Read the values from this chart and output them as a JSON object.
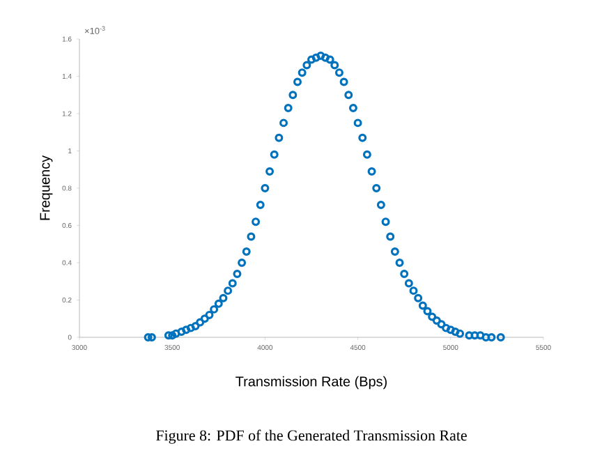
{
  "chart_data": {
    "type": "scatter",
    "xlabel": "Transmission Rate (Bps)",
    "ylabel": "Frequency",
    "annotations": [
      "×10$^{-3}$",
      "Figure 8: PDF of the Generated Transmission Rate"
    ],
    "x": [
      3370,
      3390,
      3480,
      3500,
      3520,
      3550,
      3575,
      3600,
      3625,
      3650,
      3675,
      3700,
      3725,
      3750,
      3775,
      3800,
      3825,
      3850,
      3875,
      3900,
      3925,
      3950,
      3975,
      4000,
      4025,
      4050,
      4075,
      4100,
      4125,
      4150,
      4175,
      4200,
      4225,
      4250,
      4275,
      4300,
      4325,
      4350,
      4375,
      4400,
      4425,
      4450,
      4475,
      4500,
      4525,
      4550,
      4575,
      4600,
      4625,
      4650,
      4675,
      4700,
      4725,
      4750,
      4775,
      4800,
      4825,
      4850,
      4875,
      4900,
      4925,
      4950,
      4975,
      5000,
      5025,
      5050,
      5100,
      5130,
      5160,
      5190,
      5220,
      5270
    ],
    "series": [
      {
        "color": "#0072bd",
        "values": [
          0,
          0,
          0.01,
          0.01,
          0.02,
          0.03,
          0.04,
          0.05,
          0.06,
          0.08,
          0.1,
          0.12,
          0.15,
          0.18,
          0.21,
          0.25,
          0.29,
          0.34,
          0.4,
          0.46,
          0.54,
          0.62,
          0.71,
          0.8,
          0.89,
          0.98,
          1.07,
          1.15,
          1.23,
          1.3,
          1.37,
          1.42,
          1.46,
          1.49,
          1.5,
          1.51,
          1.5,
          1.49,
          1.46,
          1.42,
          1.37,
          1.3,
          1.23,
          1.15,
          1.07,
          0.98,
          0.89,
          0.8,
          0.71,
          0.62,
          0.54,
          0.46,
          0.4,
          0.34,
          0.29,
          0.25,
          0.21,
          0.17,
          0.14,
          0.11,
          0.09,
          0.07,
          0.05,
          0.04,
          0.03,
          0.02,
          0.01,
          0.01,
          0.01,
          0,
          0,
          0
        ]
      }
    ],
    "xlim": [
      3000,
      5500
    ],
    "xticks": [
      3000,
      3500,
      4000,
      4500,
      5000,
      5500
    ],
    "ylim": [
      0,
      1.6
    ],
    "yticks": [
      0,
      0.2,
      0.4,
      0.6,
      0.8,
      1,
      1.2,
      1.4,
      1.6
    ],
    "grid": false,
    "marker": "circle"
  }
}
